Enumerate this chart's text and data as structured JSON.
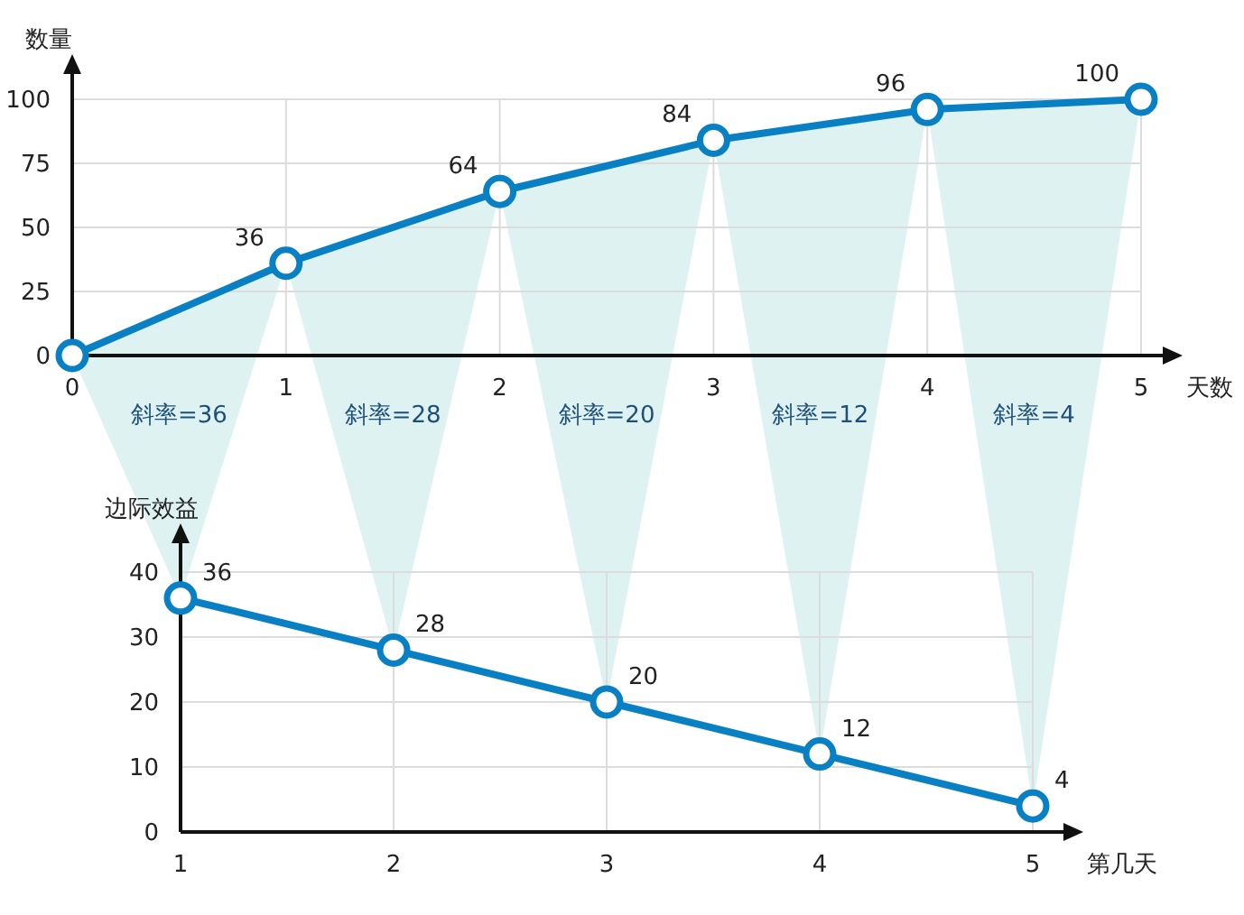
{
  "chart_data": [
    {
      "type": "line",
      "xlabel": "天数",
      "ylabel": "数量",
      "x": [
        0,
        1,
        2,
        3,
        4,
        5
      ],
      "values": [
        0,
        36,
        64,
        84,
        96,
        100
      ],
      "value_labels": [
        null,
        "36",
        "64",
        "84",
        "96",
        "100"
      ],
      "xlim": [
        0,
        5
      ],
      "xticks": [
        0,
        1,
        2,
        3,
        4,
        5
      ],
      "ylim": [
        0,
        100
      ],
      "yticks": [
        0,
        25,
        50,
        75,
        100
      ],
      "color": "#0a80c4",
      "marker": "circle",
      "grid": true,
      "annotations": [
        "斜率=36",
        "斜率=28",
        "斜率=20",
        "斜率=12",
        "斜率=4"
      ]
    },
    {
      "type": "line",
      "xlabel": "第几天",
      "ylabel": "边际效益",
      "x": [
        1,
        2,
        3,
        4,
        5
      ],
      "values": [
        36,
        28,
        20,
        12,
        4
      ],
      "data_labels": true,
      "xlim": [
        1,
        5
      ],
      "xticks": [
        1,
        2,
        3,
        4,
        5
      ],
      "ylim": [
        0,
        40
      ],
      "yticks": [
        0,
        10,
        20,
        30,
        40
      ],
      "color": "#0a80c4",
      "marker": "circle",
      "grid": true
    }
  ]
}
